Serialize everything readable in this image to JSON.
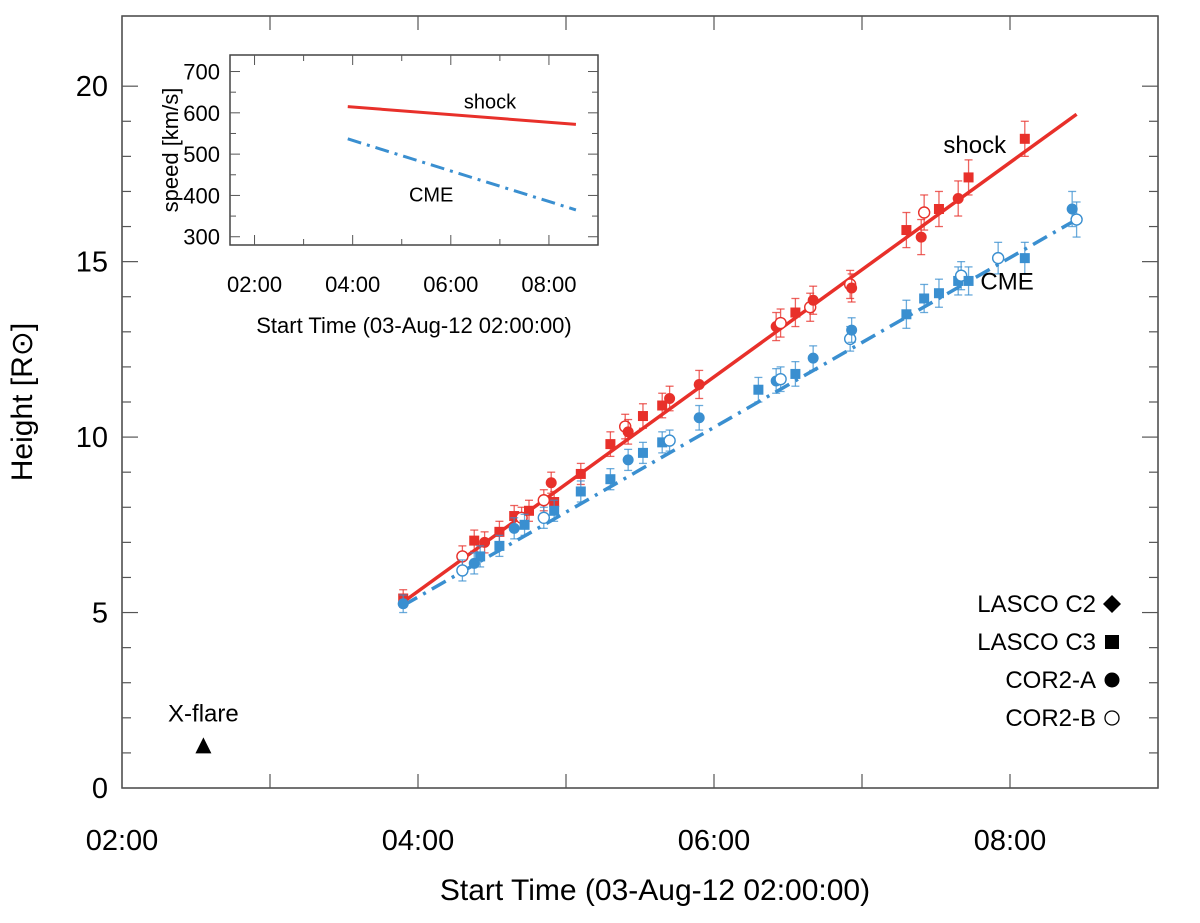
{
  "chart_data": [
    {
      "type": "scatter",
      "title": "",
      "xlabel": "Start Time (03-Aug-12 02:00:00)",
      "ylabel": "Height [R⊙]",
      "xlim": [
        2.0,
        9.0
      ],
      "ylim": [
        0,
        22
      ],
      "x_unit": "hours (UT, 03-Aug-12)",
      "x_ticks": [
        {
          "value": 2,
          "label": "02:00"
        },
        {
          "value": 4,
          "label": "04:00"
        },
        {
          "value": 6,
          "label": "06:00"
        },
        {
          "value": 8,
          "label": "08:00"
        }
      ],
      "y_ticks": [
        {
          "value": 0,
          "label": "0"
        },
        {
          "value": 5,
          "label": "5"
        },
        {
          "value": 10,
          "label": "10"
        },
        {
          "value": 15,
          "label": "15"
        },
        {
          "value": 20,
          "label": "20"
        }
      ],
      "series": [
        {
          "name": "shock",
          "color": "#e8302a",
          "label": "shock",
          "fit": {
            "x": [
              3.9,
              8.45
            ],
            "y": [
              5.3,
              19.2
            ],
            "style": "solid"
          },
          "points": [
            {
              "x": 3.9,
              "y": 5.4,
              "err": 0.25,
              "inst": "LASCO C3"
            },
            {
              "x": 4.3,
              "y": 6.6,
              "err": 0.3,
              "inst": "COR2-B"
            },
            {
              "x": 4.38,
              "y": 7.05,
              "err": 0.3,
              "inst": "LASCO C3"
            },
            {
              "x": 4.45,
              "y": 7.0,
              "err": 0.3,
              "inst": "COR2-A"
            },
            {
              "x": 4.55,
              "y": 7.3,
              "err": 0.3,
              "inst": "LASCO C3"
            },
            {
              "x": 4.65,
              "y": 7.75,
              "err": 0.3,
              "inst": "LASCO C3"
            },
            {
              "x": 4.7,
              "y": 7.7,
              "err": 0.3,
              "inst": "COR2-B"
            },
            {
              "x": 4.75,
              "y": 7.9,
              "err": 0.3,
              "inst": "LASCO C3"
            },
            {
              "x": 4.85,
              "y": 8.2,
              "err": 0.3,
              "inst": "COR2-B"
            },
            {
              "x": 4.9,
              "y": 8.7,
              "err": 0.3,
              "inst": "COR2-A"
            },
            {
              "x": 4.92,
              "y": 8.15,
              "err": 0.3,
              "inst": "LASCO C3"
            },
            {
              "x": 5.1,
              "y": 8.95,
              "err": 0.3,
              "inst": "LASCO C3"
            },
            {
              "x": 5.3,
              "y": 9.8,
              "err": 0.35,
              "inst": "LASCO C3"
            },
            {
              "x": 5.4,
              "y": 10.3,
              "err": 0.35,
              "inst": "COR2-B"
            },
            {
              "x": 5.42,
              "y": 10.15,
              "err": 0.35,
              "inst": "COR2-A"
            },
            {
              "x": 5.52,
              "y": 10.6,
              "err": 0.35,
              "inst": "LASCO C3"
            },
            {
              "x": 5.65,
              "y": 10.9,
              "err": 0.35,
              "inst": "LASCO C3"
            },
            {
              "x": 5.7,
              "y": 11.1,
              "err": 0.35,
              "inst": "COR2-A"
            },
            {
              "x": 5.9,
              "y": 11.5,
              "err": 0.4,
              "inst": "COR2-A"
            },
            {
              "x": 6.42,
              "y": 13.15,
              "err": 0.4,
              "inst": "COR2-A"
            },
            {
              "x": 6.45,
              "y": 13.25,
              "err": 0.4,
              "inst": "COR2-B"
            },
            {
              "x": 6.55,
              "y": 13.55,
              "err": 0.4,
              "inst": "LASCO C3"
            },
            {
              "x": 6.65,
              "y": 13.7,
              "err": 0.4,
              "inst": "COR2-B"
            },
            {
              "x": 6.67,
              "y": 13.9,
              "err": 0.4,
              "inst": "COR2-A"
            },
            {
              "x": 6.92,
              "y": 14.35,
              "err": 0.4,
              "inst": "COR2-B"
            },
            {
              "x": 6.93,
              "y": 14.25,
              "err": 0.4,
              "inst": "COR2-A"
            },
            {
              "x": 7.3,
              "y": 15.9,
              "err": 0.5,
              "inst": "LASCO C3"
            },
            {
              "x": 7.4,
              "y": 15.7,
              "err": 0.5,
              "inst": "COR2-A"
            },
            {
              "x": 7.42,
              "y": 16.4,
              "err": 0.5,
              "inst": "COR2-B"
            },
            {
              "x": 7.52,
              "y": 16.5,
              "err": 0.5,
              "inst": "LASCO C3"
            },
            {
              "x": 7.65,
              "y": 16.8,
              "err": 0.5,
              "inst": "COR2-A"
            },
            {
              "x": 7.72,
              "y": 17.4,
              "err": 0.5,
              "inst": "LASCO C3"
            },
            {
              "x": 8.1,
              "y": 18.5,
              "err": 0.5,
              "inst": "LASCO C3"
            }
          ]
        },
        {
          "name": "CME",
          "color": "#3a8fd0",
          "label": "CME",
          "fit": {
            "x": [
              3.9,
              8.45
            ],
            "y": [
              5.2,
              16.2
            ],
            "style": "dash-dot"
          },
          "points": [
            {
              "x": 3.9,
              "y": 5.25,
              "err": 0.25,
              "inst": "COR2-A"
            },
            {
              "x": 4.3,
              "y": 6.2,
              "err": 0.3,
              "inst": "COR2-B"
            },
            {
              "x": 4.38,
              "y": 6.4,
              "err": 0.3,
              "inst": "COR2-A"
            },
            {
              "x": 4.42,
              "y": 6.6,
              "err": 0.3,
              "inst": "LASCO C3"
            },
            {
              "x": 4.55,
              "y": 6.9,
              "err": 0.3,
              "inst": "LASCO C3"
            },
            {
              "x": 4.65,
              "y": 7.4,
              "err": 0.3,
              "inst": "COR2-A"
            },
            {
              "x": 4.72,
              "y": 7.5,
              "err": 0.3,
              "inst": "LASCO C3"
            },
            {
              "x": 4.85,
              "y": 7.7,
              "err": 0.3,
              "inst": "COR2-B"
            },
            {
              "x": 4.92,
              "y": 7.9,
              "err": 0.3,
              "inst": "LASCO C3"
            },
            {
              "x": 5.1,
              "y": 8.45,
              "err": 0.3,
              "inst": "LASCO C3"
            },
            {
              "x": 5.3,
              "y": 8.8,
              "err": 0.3,
              "inst": "LASCO C3"
            },
            {
              "x": 5.42,
              "y": 9.35,
              "err": 0.3,
              "inst": "COR2-A"
            },
            {
              "x": 5.52,
              "y": 9.55,
              "err": 0.3,
              "inst": "LASCO C3"
            },
            {
              "x": 5.65,
              "y": 9.85,
              "err": 0.3,
              "inst": "LASCO C3"
            },
            {
              "x": 5.7,
              "y": 9.9,
              "err": 0.3,
              "inst": "COR2-B"
            },
            {
              "x": 5.9,
              "y": 10.55,
              "err": 0.35,
              "inst": "COR2-A"
            },
            {
              "x": 6.3,
              "y": 11.35,
              "err": 0.35,
              "inst": "LASCO C3"
            },
            {
              "x": 6.42,
              "y": 11.6,
              "err": 0.35,
              "inst": "COR2-A"
            },
            {
              "x": 6.45,
              "y": 11.65,
              "err": 0.35,
              "inst": "COR2-B"
            },
            {
              "x": 6.55,
              "y": 11.8,
              "err": 0.35,
              "inst": "LASCO C3"
            },
            {
              "x": 6.67,
              "y": 12.25,
              "err": 0.35,
              "inst": "COR2-A"
            },
            {
              "x": 6.92,
              "y": 12.8,
              "err": 0.35,
              "inst": "COR2-B"
            },
            {
              "x": 6.93,
              "y": 13.05,
              "err": 0.35,
              "inst": "COR2-A"
            },
            {
              "x": 7.3,
              "y": 13.5,
              "err": 0.4,
              "inst": "LASCO C3"
            },
            {
              "x": 7.42,
              "y": 13.95,
              "err": 0.4,
              "inst": "LASCO C3"
            },
            {
              "x": 7.52,
              "y": 14.1,
              "err": 0.4,
              "inst": "LASCO C3"
            },
            {
              "x": 7.65,
              "y": 14.45,
              "err": 0.4,
              "inst": "LASCO C3"
            },
            {
              "x": 7.67,
              "y": 14.6,
              "err": 0.4,
              "inst": "COR2-B"
            },
            {
              "x": 7.72,
              "y": 14.45,
              "err": 0.4,
              "inst": "LASCO C3"
            },
            {
              "x": 7.92,
              "y": 15.1,
              "err": 0.45,
              "inst": "COR2-B"
            },
            {
              "x": 8.1,
              "y": 15.1,
              "err": 0.45,
              "inst": "LASCO C3"
            },
            {
              "x": 8.42,
              "y": 16.5,
              "err": 0.5,
              "inst": "COR2-A"
            },
            {
              "x": 8.45,
              "y": 16.2,
              "err": 0.5,
              "inst": "COR2-B"
            }
          ]
        }
      ],
      "annotations": [
        {
          "text": "X-flare",
          "x": 2.55,
          "y": 1.1,
          "marker": "triangle"
        },
        {
          "text": "shock",
          "x": 7.55,
          "y": 18.1
        },
        {
          "text": "CME",
          "x": 7.8,
          "y": 14.2
        }
      ],
      "legend": {
        "position": "bottom-right",
        "entries": [
          {
            "label": "LASCO C2",
            "marker": "diamond"
          },
          {
            "label": "LASCO C3",
            "marker": "square"
          },
          {
            "label": "COR2-A",
            "marker": "filled-circle"
          },
          {
            "label": "COR2-B",
            "marker": "open-circle"
          }
        ]
      }
    },
    {
      "type": "line",
      "title": "",
      "xlabel": "Start Time (03-Aug-12 02:00:00)",
      "ylabel": "speed [km/s]",
      "xlim": [
        1.5,
        9.0
      ],
      "ylim": [
        280,
        740
      ],
      "x_ticks": [
        {
          "value": 2,
          "label": "02:00"
        },
        {
          "value": 4,
          "label": "04:00"
        },
        {
          "value": 6,
          "label": "06:00"
        },
        {
          "value": 8,
          "label": "08:00"
        }
      ],
      "y_ticks": [
        {
          "value": 300,
          "label": "300"
        },
        {
          "value": 400,
          "label": "400"
        },
        {
          "value": 500,
          "label": "500"
        },
        {
          "value": 600,
          "label": "600"
        },
        {
          "value": 700,
          "label": "700"
        }
      ],
      "series": [
        {
          "name": "shock",
          "color": "#e8302a",
          "x": [
            3.9,
            8.55
          ],
          "y": [
            615,
            572
          ],
          "style": "solid"
        },
        {
          "name": "CME",
          "color": "#3a8fd0",
          "x": [
            3.9,
            8.55
          ],
          "y": [
            537,
            365
          ],
          "style": "dash-dot"
        }
      ],
      "annotations": [
        {
          "text": "shock",
          "x": 6.8,
          "y": 610
        },
        {
          "text": "CME",
          "x": 5.6,
          "y": 385
        }
      ]
    }
  ]
}
